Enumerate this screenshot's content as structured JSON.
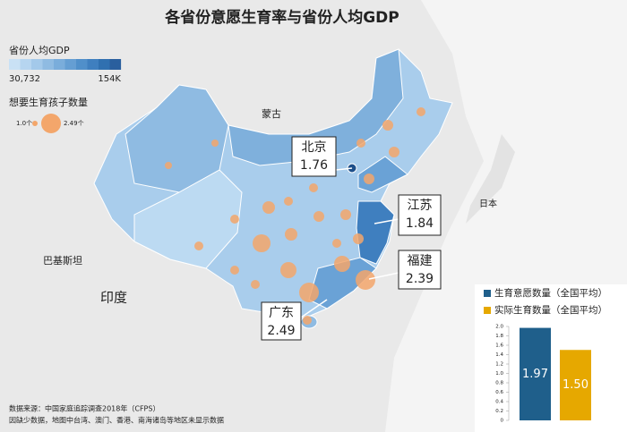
{
  "title": "各省份意愿生育率与省份人均GDP",
  "gdp_legend": {
    "label": "省份人均GDP",
    "min": "30,732",
    "max": "154K"
  },
  "bubble_legend": {
    "label": "想要生育孩子数量",
    "min": "1.0个",
    "max": "2.49个"
  },
  "map_labels": [
    "蒙古",
    "日本",
    "巴基斯坦",
    "印度"
  ],
  "callouts": [
    {
      "name": "北京",
      "value": 1.76
    },
    {
      "name": "江苏",
      "value": 1.84
    },
    {
      "name": "福建",
      "value": 2.39
    },
    {
      "name": "广东",
      "value": 2.49
    }
  ],
  "chart_data": {
    "type": "bar",
    "series": [
      {
        "name": "生育意愿数量（全国平均）",
        "color": "#1f5f8b",
        "values": [
          1.97
        ],
        "value_labels": [
          "1.97"
        ]
      },
      {
        "name": "实际生育数量（全国平均）",
        "color": "#e6a800",
        "values": [
          1.5
        ],
        "value_labels": [
          "1.50"
        ]
      }
    ],
    "ylim": [
      0,
      2
    ],
    "yticks": [
      0,
      0.2,
      0.4,
      0.6,
      0.8,
      {
        "value": 1,
        "label": "1.0"
      },
      1.2,
      1.4,
      1.6,
      1.8,
      {
        "value": 2,
        "label": "2.0"
      }
    ]
  },
  "source": [
    "数据来源：中国家庭追踪调查2018年（CFPS）",
    "因缺少数据，地图中台湾、澳门、香港、南海诸岛等地区未显示数据"
  ]
}
